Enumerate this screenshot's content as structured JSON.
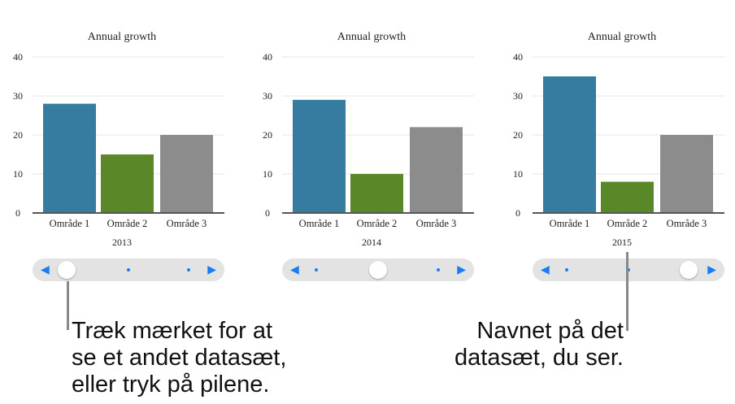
{
  "chart_data": [
    {
      "type": "bar",
      "title": "Annual growth",
      "categories": [
        "Område 1",
        "Område 2",
        "Område 3"
      ],
      "values": [
        28,
        15,
        20
      ],
      "xlabel": "2013",
      "ylim": [
        0,
        40
      ],
      "yticks": [
        0,
        10,
        20,
        30,
        40
      ],
      "grid": true
    },
    {
      "type": "bar",
      "title": "Annual growth",
      "categories": [
        "Område 1",
        "Område 2",
        "Område 3"
      ],
      "values": [
        29,
        10,
        22
      ],
      "xlabel": "2014",
      "ylim": [
        0,
        40
      ],
      "yticks": [
        0,
        10,
        20,
        30,
        40
      ],
      "grid": true
    },
    {
      "type": "bar",
      "title": "Annual growth",
      "categories": [
        "Område 1",
        "Område 2",
        "Område 3"
      ],
      "values": [
        35,
        8,
        20
      ],
      "xlabel": "2015",
      "ylim": [
        0,
        40
      ],
      "yticks": [
        0,
        10,
        20,
        30,
        40
      ],
      "grid": true
    }
  ],
  "colors": [
    "#367ca0",
    "#5a8829",
    "#8c8c8c"
  ],
  "slider": {
    "left_arrow": "◀",
    "right_arrow": "▶",
    "positions": 3,
    "selected": [
      0,
      1,
      2
    ]
  },
  "callouts": {
    "left": "Træk mærket for at\nse et andet datasæt,\neller tryk på pilene.",
    "right": "Navnet på det\ndatasæt, du ser."
  }
}
